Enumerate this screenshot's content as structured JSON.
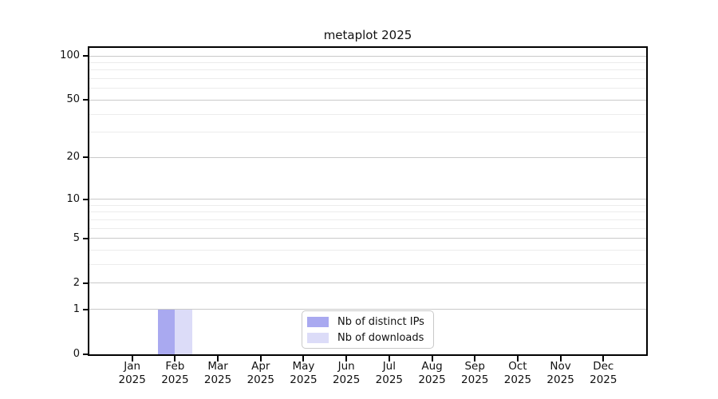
{
  "chart_data": {
    "type": "bar",
    "title": "metaplot 2025",
    "categories": [
      "Jan",
      "Feb",
      "Mar",
      "Apr",
      "May",
      "Jun",
      "Jul",
      "Aug",
      "Sep",
      "Oct",
      "Nov",
      "Dec"
    ],
    "category_year": "2025",
    "series": [
      {
        "name": "Nb of distinct IPs",
        "color": "#a9a9f0",
        "values": [
          0,
          1,
          0,
          0,
          0,
          0,
          0,
          0,
          0,
          0,
          0,
          0
        ]
      },
      {
        "name": "Nb of downloads",
        "color": "#dcdcf8",
        "values": [
          0,
          1,
          0,
          0,
          0,
          0,
          0,
          0,
          0,
          0,
          0,
          0
        ]
      }
    ],
    "xlabel": "",
    "ylabel": "",
    "y_scale": "log1p",
    "y_ticks": [
      0,
      1,
      2,
      5,
      10,
      20,
      50,
      100
    ],
    "y_minor_gridlines": [
      3,
      4,
      6,
      7,
      8,
      9,
      30,
      40,
      60,
      70,
      80,
      90
    ],
    "ylim": [
      0,
      114
    ],
    "grid": "horizontal",
    "legend_position": "bottom-center",
    "colors": {
      "axis": "#000000",
      "major_gridline": "#c9c9c9",
      "minor_gridline": "#ececec",
      "legend_border": "#c9c9c9",
      "text": "#111111"
    }
  }
}
